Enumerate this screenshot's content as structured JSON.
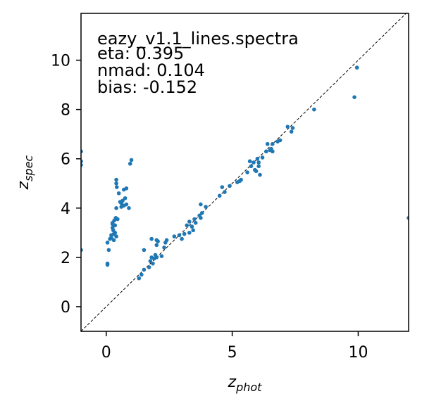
{
  "chart_data": {
    "type": "scatter",
    "xlabel": "z",
    "xlabel_sub": "phot",
    "ylabel": "z",
    "ylabel_sub": "spec",
    "xlim": [
      -1,
      12
    ],
    "ylim": [
      -1,
      11.9
    ],
    "xticks": [
      0,
      5,
      10
    ],
    "yticks": [
      0,
      2,
      4,
      6,
      8,
      10
    ],
    "grid": false,
    "point_color": "#1f77b4",
    "reference_line": {
      "type": "one-to-one",
      "style": "dashed",
      "color": "#000000"
    },
    "annotations": [
      "eazy_v1.1_lines.spectra",
      "eta: 0.395",
      "nmad: 0.104",
      "bias: -0.152"
    ],
    "points": [
      [
        -1.0,
        6.3
      ],
      [
        -1.0,
        5.9
      ],
      [
        -1.0,
        5.75
      ],
      [
        -1.0,
        2.3
      ],
      [
        0.05,
        1.75
      ],
      [
        0.05,
        1.7
      ],
      [
        0.05,
        2.6
      ],
      [
        0.1,
        2.3
      ],
      [
        0.15,
        2.75
      ],
      [
        0.2,
        2.8
      ],
      [
        0.2,
        2.9
      ],
      [
        0.25,
        3.2
      ],
      [
        0.25,
        3.35
      ],
      [
        0.25,
        3.4
      ],
      [
        0.28,
        3.1
      ],
      [
        0.3,
        2.7
      ],
      [
        0.3,
        2.95
      ],
      [
        0.32,
        3.5
      ],
      [
        0.35,
        3.0
      ],
      [
        0.35,
        3.3
      ],
      [
        0.38,
        3.6
      ],
      [
        0.4,
        2.85
      ],
      [
        0.4,
        4.0
      ],
      [
        0.4,
        5.0
      ],
      [
        0.4,
        5.15
      ],
      [
        0.42,
        4.85
      ],
      [
        0.45,
        3.55
      ],
      [
        0.5,
        4.6
      ],
      [
        0.55,
        4.25
      ],
      [
        0.6,
        4.2
      ],
      [
        0.6,
        4.05
      ],
      [
        0.65,
        4.3
      ],
      [
        0.7,
        4.75
      ],
      [
        0.7,
        4.1
      ],
      [
        0.75,
        4.4
      ],
      [
        0.8,
        4.8
      ],
      [
        0.8,
        4.15
      ],
      [
        0.9,
        4.0
      ],
      [
        0.95,
        5.8
      ],
      [
        1.0,
        5.95
      ],
      [
        1.3,
        1.15
      ],
      [
        1.4,
        1.3
      ],
      [
        1.5,
        1.5
      ],
      [
        1.5,
        2.3
      ],
      [
        1.7,
        1.6
      ],
      [
        1.75,
        1.85
      ],
      [
        1.8,
        2.0
      ],
      [
        1.8,
        2.75
      ],
      [
        1.85,
        1.75
      ],
      [
        1.9,
        1.95
      ],
      [
        1.95,
        2.1
      ],
      [
        2.0,
        2.0
      ],
      [
        2.0,
        2.5
      ],
      [
        2.0,
        2.7
      ],
      [
        2.05,
        2.65
      ],
      [
        2.2,
        2.05
      ],
      [
        2.3,
        2.4
      ],
      [
        2.35,
        2.6
      ],
      [
        2.4,
        2.7
      ],
      [
        2.7,
        2.85
      ],
      [
        2.9,
        2.9
      ],
      [
        3.0,
        2.75
      ],
      [
        3.1,
        2.95
      ],
      [
        3.2,
        3.3
      ],
      [
        3.3,
        3.45
      ],
      [
        3.3,
        3.0
      ],
      [
        3.4,
        3.25
      ],
      [
        3.45,
        3.1
      ],
      [
        3.5,
        3.55
      ],
      [
        3.55,
        3.4
      ],
      [
        3.7,
        3.7
      ],
      [
        3.75,
        4.15
      ],
      [
        3.75,
        3.6
      ],
      [
        3.8,
        3.8
      ],
      [
        3.95,
        4.05
      ],
      [
        4.5,
        4.5
      ],
      [
        4.6,
        4.85
      ],
      [
        4.7,
        4.65
      ],
      [
        4.9,
        4.9
      ],
      [
        5.2,
        5.05
      ],
      [
        5.3,
        5.1
      ],
      [
        5.35,
        5.15
      ],
      [
        5.6,
        5.45
      ],
      [
        5.7,
        5.9
      ],
      [
        5.75,
        5.7
      ],
      [
        5.85,
        5.85
      ],
      [
        5.9,
        5.55
      ],
      [
        5.95,
        5.5
      ],
      [
        6.0,
        6.0
      ],
      [
        6.05,
        5.85
      ],
      [
        6.05,
        5.7
      ],
      [
        6.1,
        5.35
      ],
      [
        6.2,
        6.05
      ],
      [
        6.35,
        6.3
      ],
      [
        6.4,
        6.6
      ],
      [
        6.5,
        6.35
      ],
      [
        6.55,
        6.4
      ],
      [
        6.6,
        6.3
      ],
      [
        6.6,
        6.6
      ],
      [
        6.8,
        6.7
      ],
      [
        6.9,
        6.75
      ],
      [
        7.2,
        7.3
      ],
      [
        7.35,
        7.1
      ],
      [
        7.4,
        7.25
      ],
      [
        8.25,
        8.0
      ],
      [
        9.85,
        8.5
      ],
      [
        9.95,
        9.7
      ],
      [
        12.0,
        3.6
      ]
    ]
  }
}
